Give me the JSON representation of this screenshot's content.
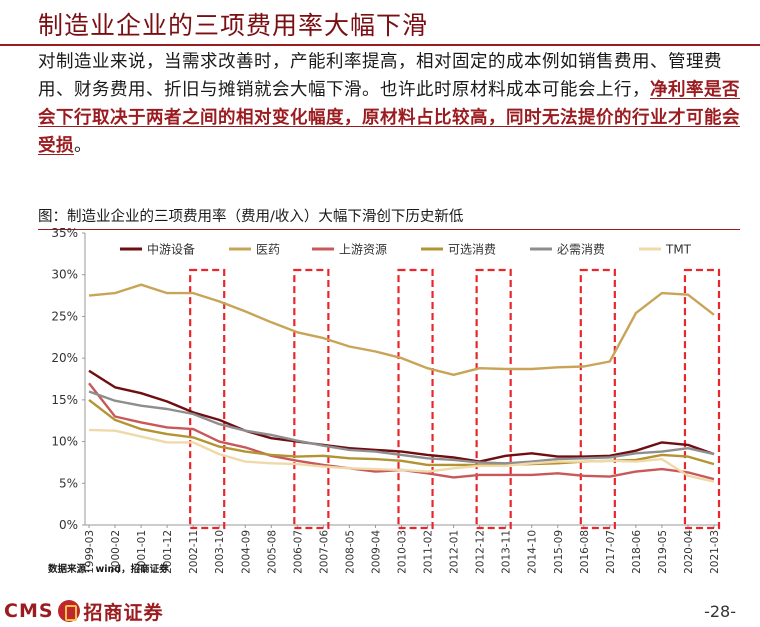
{
  "header": {
    "title": "制造业企业的三项费用率大幅下滑"
  },
  "body": {
    "text_part1": "对制造业来说，当需求改善时，产能利率提高，相对固定的成本例如销售费用、管理费用、财务费用、折旧与摊销就会大幅下滑。也许此时原材料成本可能会上行，",
    "text_highlight": "净利率是否会下行取决于两者之间的相对变化幅度，原材料占比较高，同时无法提价的行业才可能会受损",
    "text_end": "。"
  },
  "chart_title": "图：制造业企业的三项费用率（费用/收入）大幅下滑创下历史新低",
  "source": "数据来源：wind，招商证券",
  "footer": {
    "logo_latin": "CMS",
    "logo_cn": "招商证券",
    "page": "-28-"
  },
  "colors": {
    "accent": "#9b1c20",
    "highlight_box": "#e8262b"
  },
  "chart_data": {
    "type": "line",
    "title": "图：制造业企业的三项费用率（费用/收入）大幅下滑创下历史新低",
    "ylim": [
      0,
      35
    ],
    "y_tick_labels": [
      "0%",
      "5%",
      "10%",
      "15%",
      "20%",
      "25%",
      "30%",
      "35%"
    ],
    "x_tick_labels": [
      "1999-03",
      "2000-02",
      "2001-01",
      "2001-12",
      "2002-11",
      "2003-10",
      "2004-09",
      "2005-08",
      "2006-07",
      "2007-06",
      "2008-05",
      "2009-04",
      "2010-03",
      "2011-02",
      "2012-01",
      "2012-12",
      "2013-11",
      "2014-10",
      "2015-09",
      "2016-08",
      "2017-07",
      "2018-06",
      "2019-05",
      "2020-04",
      "2021-03"
    ],
    "legend_position": "top",
    "grid": false,
    "series": [
      {
        "name": "中游设备",
        "color": "#6e0e10",
        "values": [
          18.5,
          16.5,
          15.8,
          14.8,
          13.5,
          12.6,
          11.3,
          10.4,
          10.0,
          9.6,
          9.2,
          9.0,
          8.8,
          8.4,
          8.1,
          7.6,
          8.3,
          8.6,
          8.2,
          8.2,
          8.3,
          8.9,
          9.9,
          9.6,
          8.5
        ]
      },
      {
        "name": "医药",
        "color": "#c9a458",
        "values": [
          27.5,
          27.8,
          28.8,
          27.8,
          27.8,
          26.8,
          25.6,
          24.3,
          23.1,
          22.4,
          21.4,
          20.8,
          20.0,
          18.8,
          18.0,
          18.8,
          18.7,
          18.7,
          18.9,
          19.0,
          19.6,
          25.4,
          27.8,
          27.6,
          25.2
        ]
      },
      {
        "name": "上游资源",
        "color": "#c8585a",
        "values": [
          17.0,
          13.0,
          12.3,
          11.7,
          11.5,
          10.0,
          9.3,
          8.3,
          7.7,
          7.2,
          6.8,
          6.4,
          6.6,
          6.2,
          5.7,
          6.0,
          6.0,
          6.0,
          6.2,
          5.9,
          5.8,
          6.4,
          6.7,
          6.3,
          5.5
        ]
      },
      {
        "name": "可选消费",
        "color": "#b39433",
        "values": [
          15.0,
          12.6,
          11.5,
          10.9,
          10.5,
          9.4,
          8.8,
          8.4,
          8.2,
          8.3,
          8.0,
          7.9,
          7.7,
          7.2,
          7.2,
          7.2,
          7.2,
          7.3,
          7.4,
          7.6,
          7.7,
          7.8,
          8.4,
          8.2,
          7.3
        ]
      },
      {
        "name": "必需消费",
        "color": "#8e8e8e",
        "values": [
          16.0,
          14.9,
          14.3,
          13.9,
          13.3,
          12.1,
          11.3,
          10.8,
          10.1,
          9.5,
          9.0,
          8.8,
          8.4,
          8.0,
          7.8,
          7.5,
          7.4,
          7.6,
          7.9,
          8.0,
          8.1,
          8.6,
          8.8,
          9.2,
          8.5
        ]
      },
      {
        "name": "TMT",
        "color": "#f0d9a8",
        "values": [
          11.4,
          11.3,
          10.6,
          9.9,
          9.9,
          8.5,
          7.6,
          7.4,
          7.3,
          7.0,
          6.8,
          6.7,
          6.6,
          6.4,
          6.8,
          7.1,
          7.1,
          7.4,
          7.6,
          7.6,
          7.7,
          7.6,
          7.9,
          5.9,
          5.2
        ]
      }
    ],
    "highlight_periods": [
      {
        "from": "2002-11",
        "to": "2003-10"
      },
      {
        "from": "2006-07",
        "to": "2007-06"
      },
      {
        "from": "2010-03",
        "to": "2011-02"
      },
      {
        "from": "2012-12",
        "to": "2013-11"
      },
      {
        "from": "2016-08",
        "to": "2017-07"
      },
      {
        "from": "2020-04",
        "to": "2021-03"
      }
    ]
  }
}
